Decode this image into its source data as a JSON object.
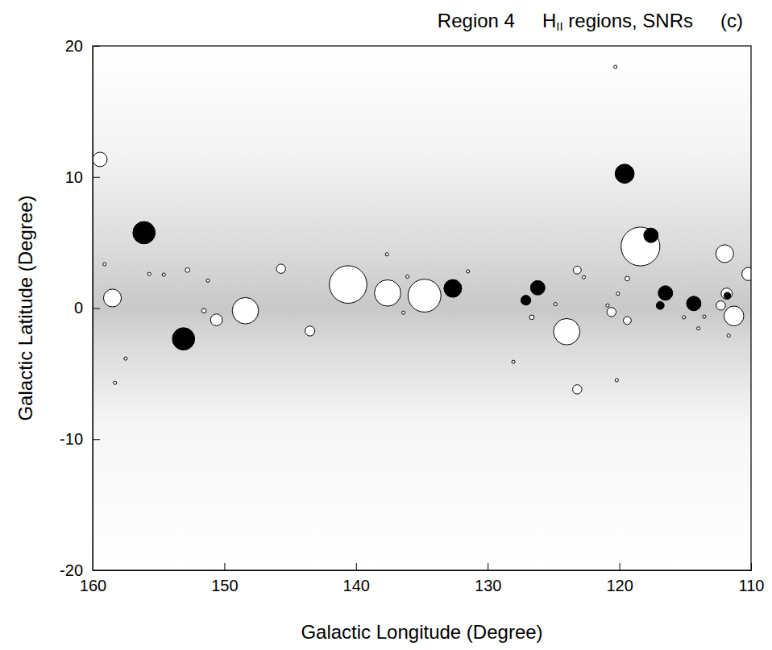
{
  "chart_data": {
    "type": "bubble",
    "title": "Region 4",
    "subtitle": "HII regions, SNRs",
    "annotations": [
      "(c)"
    ],
    "x_label": "Galactic Longitude (Degree)",
    "y_label": "Galactic Latitude (Degree)",
    "xlim": [
      160,
      110
    ],
    "ylim": [
      -20,
      20
    ],
    "xticks": [
      160,
      150,
      140,
      130,
      120,
      110
    ],
    "yticks": [
      -20,
      -10,
      0,
      10,
      20
    ],
    "series": [
      {
        "color": "#ffffff",
        "x": [
          159.45,
          158.5,
          148.4,
          150.6,
          145.7,
          143.5,
          140.6,
          137.6,
          134.8,
          124.0,
          123.2,
          123.2,
          120.6,
          119.4,
          118.4,
          112.0,
          110.2,
          111.85,
          111.3,
          112.3,
          151.55,
          152.8,
          119.4,
          126.65,
          159.1,
          157.5,
          158.3,
          155.7,
          154.6,
          151.25,
          137.65,
          136.1,
          136.4,
          128.05,
          131.5,
          122.7,
          120.1,
          120.2,
          120.3,
          115.1,
          114.0,
          113.55,
          111.7,
          124.85,
          120.9
        ],
        "values": [
          11.34,
          0.77,
          -0.2,
          -0.9,
          3.0,
          -1.75,
          1.8,
          1.15,
          0.95,
          -1.8,
          2.9,
          -6.2,
          -0.3,
          -0.95,
          4.7,
          4.15,
          2.6,
          1.1,
          -0.6,
          0.2,
          -0.2,
          2.9,
          2.25,
          -0.7,
          3.35,
          -3.85,
          -5.7,
          2.6,
          2.55,
          2.1,
          4.1,
          2.4,
          -0.35,
          -4.1,
          2.8,
          2.35,
          1.1,
          -5.5,
          18.4,
          -0.7,
          -1.55,
          -0.65,
          -2.1,
          0.3,
          0.2
        ],
        "sizes": [
          1.1,
          1.35,
          2.0,
          0.9,
          0.7,
          0.75,
          2.85,
          2.0,
          2.5,
          2.0,
          0.6,
          0.7,
          0.7,
          0.6,
          2.95,
          1.35,
          1.0,
          0.85,
          1.5,
          0.7,
          0.35,
          0.35,
          0.35,
          0.35,
          0.25,
          0.25,
          0.25,
          0.25,
          0.25,
          0.25,
          0.25,
          0.25,
          0.25,
          0.25,
          0.25,
          0.25,
          0.25,
          0.25,
          0.25,
          0.25,
          0.25,
          0.25,
          0.25,
          0.25,
          0.25
        ]
      },
      {
        "color": "#000000",
        "x": [
          156.1,
          153.1,
          132.65,
          127.1,
          126.2,
          119.6,
          117.6,
          116.5,
          116.9,
          114.35,
          111.8
        ],
        "values": [
          5.75,
          -2.35,
          1.5,
          0.6,
          1.55,
          10.25,
          5.55,
          1.15,
          0.2,
          0.35,
          0.95
        ],
        "sizes": [
          1.7,
          1.7,
          1.35,
          0.75,
          1.1,
          1.45,
          1.1,
          1.1,
          0.6,
          1.1,
          0.5
        ]
      }
    ]
  }
}
